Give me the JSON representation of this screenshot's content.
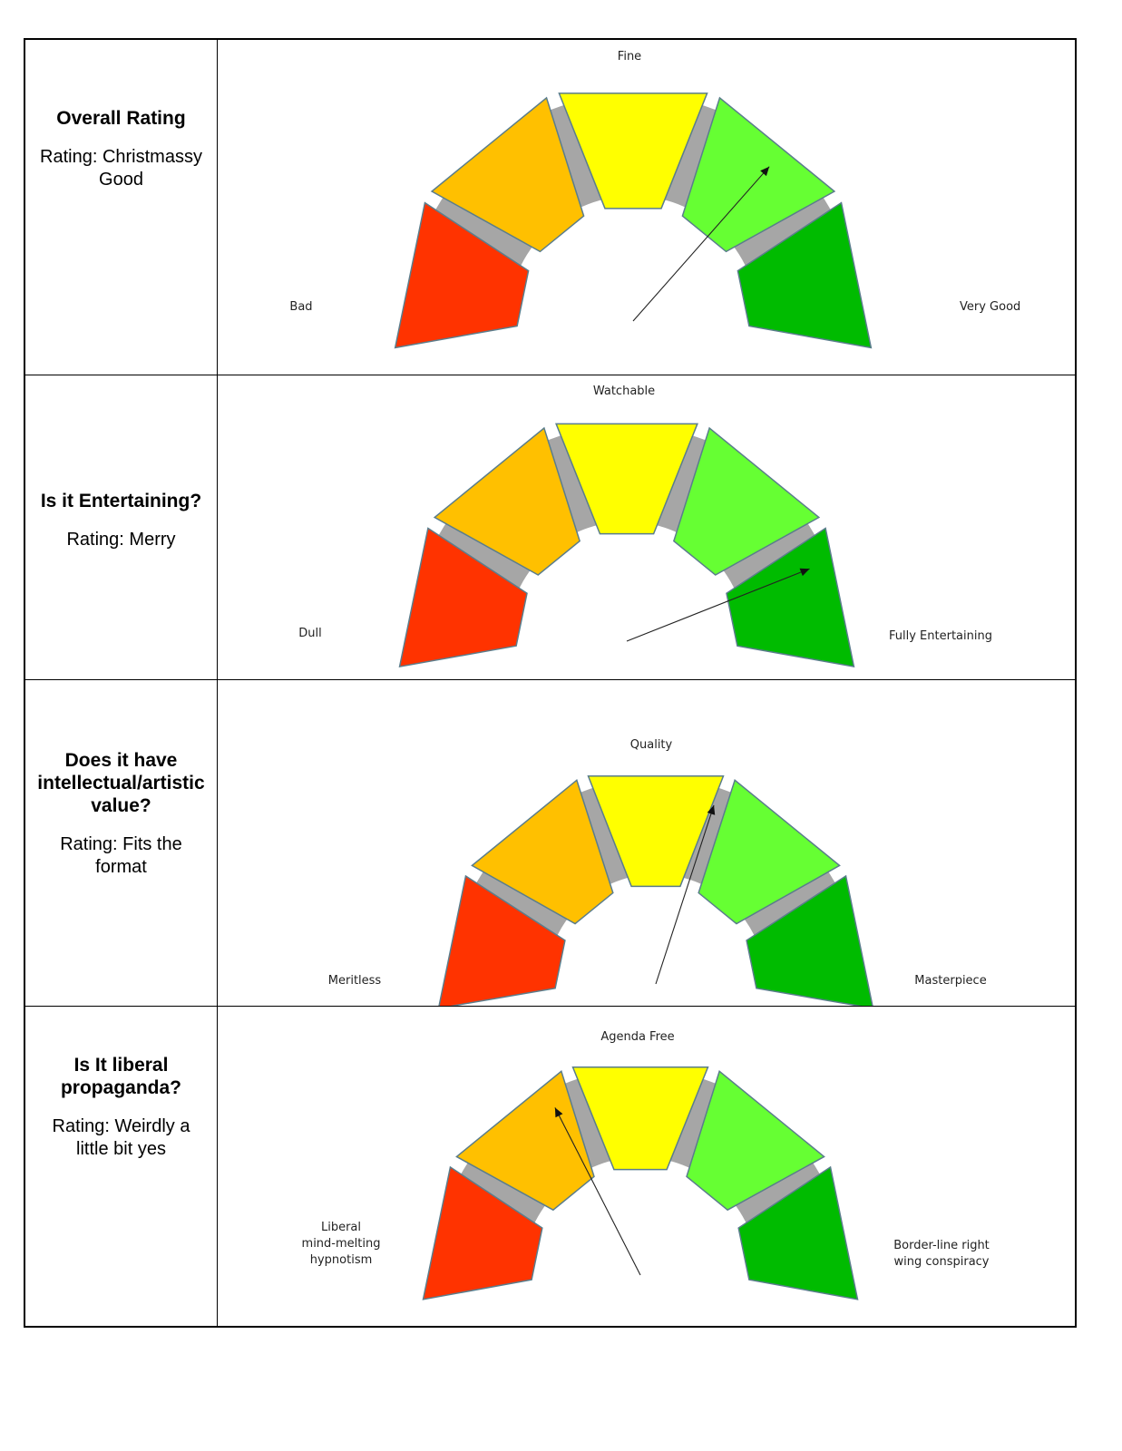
{
  "chart_data": [
    {
      "type": "gauge",
      "question": "Overall Rating",
      "answer": "Rating: Christmassy Good",
      "labels": {
        "left": "Bad",
        "center": "Fine",
        "right": "Very Good"
      },
      "scale": [
        0,
        100
      ],
      "value": 73,
      "segments": 5,
      "colors": [
        "#ff3300",
        "#ffc000",
        "#ffff00",
        "#66ff33",
        "#00bb00"
      ],
      "track_color": "#a6a6a6"
    },
    {
      "type": "gauge",
      "question": "Is it Entertaining?",
      "answer": "Rating: Merry",
      "labels": {
        "left": "Dull",
        "center": "Watchable",
        "right": "Fully Entertaining"
      },
      "scale": [
        0,
        100
      ],
      "value": 88,
      "segments": 5,
      "colors": [
        "#ff3300",
        "#ffc000",
        "#ffff00",
        "#66ff33",
        "#00bb00"
      ],
      "track_color": "#a6a6a6"
    },
    {
      "type": "gauge",
      "question": "Does it have intellectual/artistic value?",
      "answer": "Rating:  Fits the format",
      "labels": {
        "left": "Meritless",
        "center": "Quality",
        "right": "Masterpiece"
      },
      "scale": [
        0,
        100
      ],
      "value": 60,
      "segments": 5,
      "colors": [
        "#ff3300",
        "#ffc000",
        "#ffff00",
        "#66ff33",
        "#00bb00"
      ],
      "track_color": "#a6a6a6"
    },
    {
      "type": "gauge",
      "question": "Is It liberal propaganda?",
      "answer": "Rating: Weirdly a little bit yes",
      "labels": {
        "left": "Liberal mind-melting hypnotism",
        "center": "Agenda Free",
        "right": "Border-line right wing conspiracy"
      },
      "scale": [
        0,
        100
      ],
      "value": 35,
      "segments": 5,
      "colors": [
        "#ff3300",
        "#ffc000",
        "#ffff00",
        "#66ff33",
        "#00bb00"
      ],
      "track_color": "#a6a6a6"
    }
  ]
}
